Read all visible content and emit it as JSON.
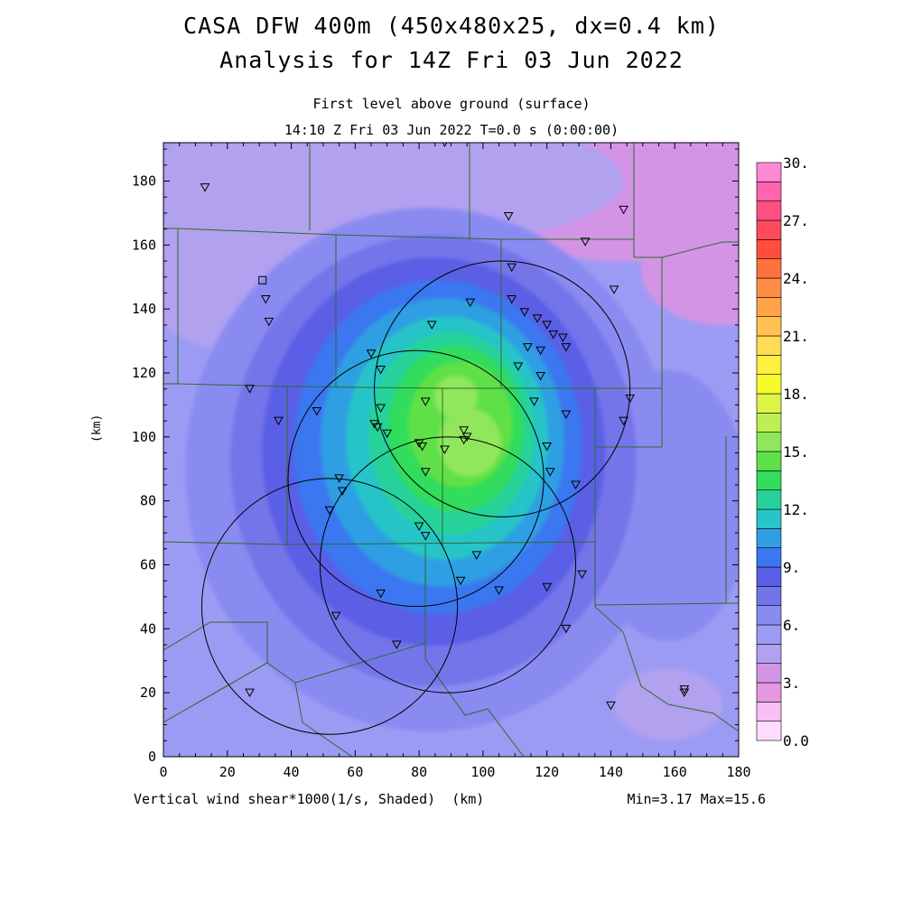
{
  "title": {
    "line1": "CASA DFW 400m (450x480x25, dx=0.4 km)",
    "line2": "Analysis for 14Z Fri 03 Jun 2022"
  },
  "subtitle": {
    "level": "First level above ground (surface)",
    "time": "14:10 Z Fri 03 Jun 2022    T=0.0 s (0:00:00)"
  },
  "axes": {
    "x_ticks": [
      "0",
      "20",
      "40",
      "60",
      "80",
      "100",
      "120",
      "140",
      "160",
      "180"
    ],
    "y_ticks": [
      "0",
      "20",
      "40",
      "60",
      "80",
      "100",
      "120",
      "140",
      "160",
      "180"
    ],
    "x_unit": "(km)",
    "y_unit": "(km)",
    "xlim": [
      0,
      180
    ],
    "ylim": [
      0,
      192
    ]
  },
  "footer": {
    "field": "Vertical wind shear*1000(1/s, Shaded)",
    "x_unit": "(km)",
    "minmax": "Min=3.17 Max=15.6"
  },
  "colorbar": {
    "labels": [
      "30.",
      "27.",
      "24.",
      "21.",
      "18.",
      "15.",
      "12.",
      "9.",
      "6.",
      "3.",
      "0.0"
    ],
    "colors": [
      "#ffdcff",
      "#f7bff3",
      "#e597e0",
      "#d394e6",
      "#b1a1ef",
      "#9c9bf4",
      "#8a8bf1",
      "#7474ea",
      "#5a5ee6",
      "#3b77f0",
      "#2f9fe3",
      "#27c4c8",
      "#27d29a",
      "#33dc5c",
      "#5fe047",
      "#90e75b",
      "#bdee55",
      "#dcf446",
      "#f6fb2a",
      "#fff03e",
      "#ffdb56",
      "#ffc250",
      "#ffa548",
      "#ff8e45",
      "#ff7240",
      "#ff4e3c",
      "#ff4b5b",
      "#ff4f83",
      "#ff65ad",
      "#ff88d4"
    ]
  },
  "chart_data": {
    "type": "heatmap",
    "field": "Vertical wind shear*1000 (1/s)",
    "x_range_km": [
      0,
      180
    ],
    "y_range_km": [
      0,
      192
    ],
    "min": 3.17,
    "max": 15.6,
    "contour_levels": [
      0,
      1,
      2,
      3,
      4,
      5,
      6,
      7,
      8,
      9,
      10,
      11,
      12,
      13,
      14,
      15,
      16,
      17,
      18,
      19,
      20,
      21,
      22,
      23,
      24,
      25,
      26,
      27,
      28,
      29,
      30
    ],
    "field_maxima": [
      {
        "x_km": 92,
        "y_km": 98,
        "value": 15.6
      },
      {
        "x_km": 84,
        "y_km": 112,
        "value": 14.5
      }
    ],
    "radar_coverage_circles": [
      {
        "center_km": [
          106,
          115
        ],
        "radius_km": 40
      },
      {
        "center_km": [
          79,
          87
        ],
        "radius_km": 40
      },
      {
        "center_km": [
          89,
          60
        ],
        "radius_km": 40
      },
      {
        "center_km": [
          52,
          47
        ],
        "radius_km": 40
      }
    ],
    "station_markers_km": [
      [
        88,
        192
      ],
      [
        13,
        178
      ],
      [
        108,
        169
      ],
      [
        144,
        171
      ],
      [
        132,
        161
      ],
      [
        141,
        146
      ],
      [
        109,
        153
      ],
      [
        32,
        143
      ],
      [
        33,
        136
      ],
      [
        96,
        142
      ],
      [
        109,
        143
      ],
      [
        113,
        139
      ],
      [
        117,
        137
      ],
      [
        120,
        135
      ],
      [
        125,
        131
      ],
      [
        114,
        128
      ],
      [
        118,
        127
      ],
      [
        122,
        132
      ],
      [
        126,
        128
      ],
      [
        84,
        135
      ],
      [
        65,
        126
      ],
      [
        68,
        121
      ],
      [
        111,
        122
      ],
      [
        118,
        119
      ],
      [
        82,
        111
      ],
      [
        116,
        111
      ],
      [
        126,
        107
      ],
      [
        146,
        112
      ],
      [
        144,
        105
      ],
      [
        27,
        115
      ],
      [
        36,
        105
      ],
      [
        48,
        108
      ],
      [
        68,
        109
      ],
      [
        66,
        104
      ],
      [
        67,
        103
      ],
      [
        70,
        101
      ],
      [
        80,
        98
      ],
      [
        81,
        97
      ],
      [
        88,
        96
      ],
      [
        94,
        102
      ],
      [
        95,
        100
      ],
      [
        94,
        99
      ],
      [
        120,
        97
      ],
      [
        121,
        89
      ],
      [
        82,
        89
      ],
      [
        129,
        85
      ],
      [
        55,
        87
      ],
      [
        56,
        83
      ],
      [
        52,
        77
      ],
      [
        80,
        72
      ],
      [
        82,
        69
      ],
      [
        98,
        63
      ],
      [
        68,
        51
      ],
      [
        93,
        55
      ],
      [
        105,
        52
      ],
      [
        120,
        53
      ],
      [
        131,
        57
      ],
      [
        126,
        40
      ],
      [
        54,
        44
      ],
      [
        73,
        35
      ],
      [
        27,
        20
      ],
      [
        140,
        16
      ],
      [
        163,
        20
      ],
      [
        163,
        21
      ]
    ],
    "square_marker_km": [
      31,
      149
    ]
  }
}
